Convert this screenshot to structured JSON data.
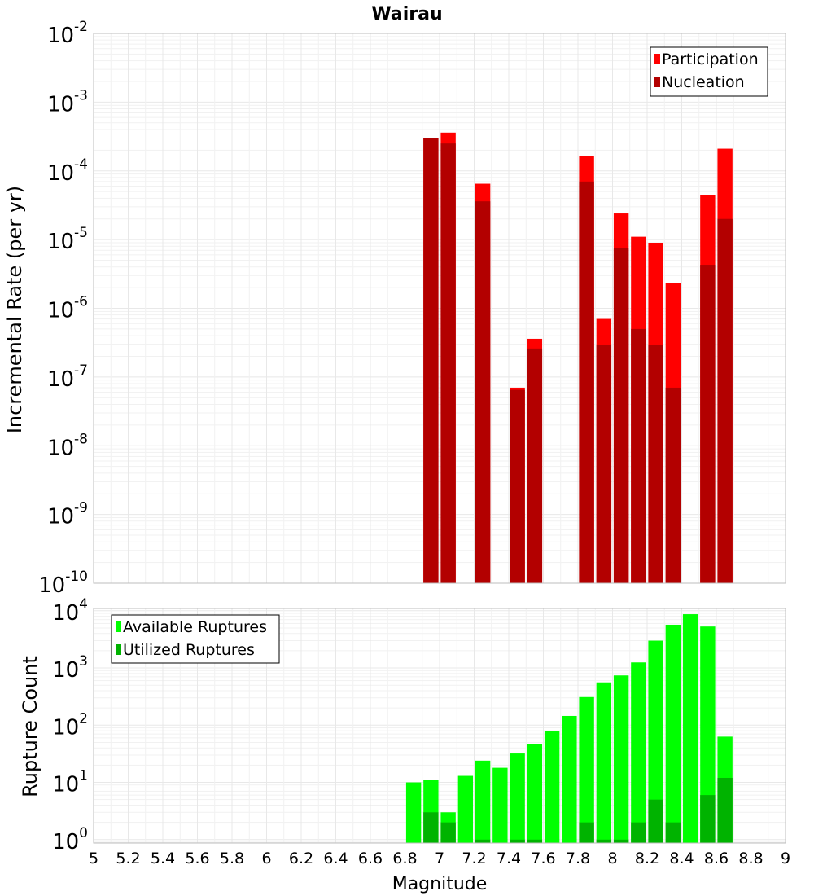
{
  "chart_data": {
    "title": "Wairau",
    "type": "bar",
    "x_axis": {
      "label": "Magnitude",
      "range": [
        5,
        9
      ],
      "ticks": [
        "5",
        "5.2",
        "5.4",
        "5.6",
        "5.8",
        "6",
        "6.2",
        "6.4",
        "6.6",
        "6.8",
        "7",
        "7.2",
        "7.4",
        "7.6",
        "7.8",
        "8",
        "8.2",
        "8.4",
        "8.6",
        "8.8",
        "9"
      ]
    },
    "panels": [
      {
        "name": "rate",
        "ylabel": "Incremental Rate (per yr)",
        "yscale": "log",
        "ylim_exp": [
          -10,
          -2
        ],
        "y_tick_exps": [
          "-10",
          "-9",
          "-8",
          "-7",
          "-6",
          "-5",
          "-4",
          "-3",
          "-2"
        ],
        "legend": {
          "position": "top-right",
          "entries": [
            "Participation",
            "Nucleation"
          ]
        },
        "series": [
          {
            "name": "Participation",
            "color": "#ff0000",
            "points": [
              [
                6.95,
                0.0003
              ],
              [
                7.05,
                0.00036
              ],
              [
                7.25,
                6.5e-05
              ],
              [
                7.45,
                7e-08
              ],
              [
                7.55,
                3.6e-07
              ],
              [
                7.85,
                0.000165
              ],
              [
                7.95,
                7e-07
              ],
              [
                8.05,
                2.4e-05
              ],
              [
                8.15,
                1.1e-05
              ],
              [
                8.25,
                9e-06
              ],
              [
                8.35,
                2.3e-06
              ],
              [
                8.55,
                4.4e-05
              ],
              [
                8.65,
                0.00021
              ]
            ]
          },
          {
            "name": "Nucleation",
            "color": "#b30000",
            "points": [
              [
                6.95,
                0.0003
              ],
              [
                7.05,
                0.00025
              ],
              [
                7.25,
                3.6e-05
              ],
              [
                7.45,
                6.5e-08
              ],
              [
                7.55,
                2.6e-07
              ],
              [
                7.85,
                7e-05
              ],
              [
                7.95,
                2.9e-07
              ],
              [
                8.05,
                7.5e-06
              ],
              [
                8.15,
                5e-07
              ],
              [
                8.25,
                2.9e-07
              ],
              [
                8.35,
                7e-08
              ],
              [
                8.55,
                4.3e-06
              ],
              [
                8.65,
                2e-05
              ]
            ]
          }
        ]
      },
      {
        "name": "count",
        "ylabel": "Rupture Count",
        "yscale": "log",
        "ylim_exp": [
          -0.06,
          4.04
        ],
        "y_tick_exps": [
          "0",
          "1",
          "2",
          "3",
          "4"
        ],
        "legend": {
          "position": "top-left",
          "entries": [
            "Available Ruptures",
            "Utilized Ruptures"
          ]
        },
        "series": [
          {
            "name": "Available Ruptures",
            "color": "#00ff00",
            "points": [
              [
                6.85,
                10
              ],
              [
                6.95,
                11
              ],
              [
                7.05,
                3
              ],
              [
                7.15,
                13
              ],
              [
                7.25,
                24
              ],
              [
                7.35,
                18
              ],
              [
                7.45,
                32
              ],
              [
                7.55,
                46
              ],
              [
                7.65,
                80
              ],
              [
                7.75,
                145
              ],
              [
                7.85,
                310
              ],
              [
                7.95,
                560
              ],
              [
                8.05,
                740
              ],
              [
                8.15,
                1250
              ],
              [
                8.25,
                3000
              ],
              [
                8.35,
                5700
              ],
              [
                8.45,
                8700
              ],
              [
                8.55,
                5300
              ],
              [
                8.65,
                63
              ]
            ]
          },
          {
            "name": "Utilized Ruptures",
            "color": "#00b300",
            "points": [
              [
                6.95,
                3
              ],
              [
                7.05,
                2
              ],
              [
                7.25,
                1
              ],
              [
                7.45,
                1
              ],
              [
                7.55,
                1
              ],
              [
                7.85,
                2
              ],
              [
                7.95,
                1
              ],
              [
                8.05,
                1
              ],
              [
                8.15,
                2
              ],
              [
                8.25,
                5
              ],
              [
                8.35,
                2
              ],
              [
                8.55,
                6
              ],
              [
                8.65,
                12
              ]
            ]
          }
        ]
      }
    ]
  }
}
